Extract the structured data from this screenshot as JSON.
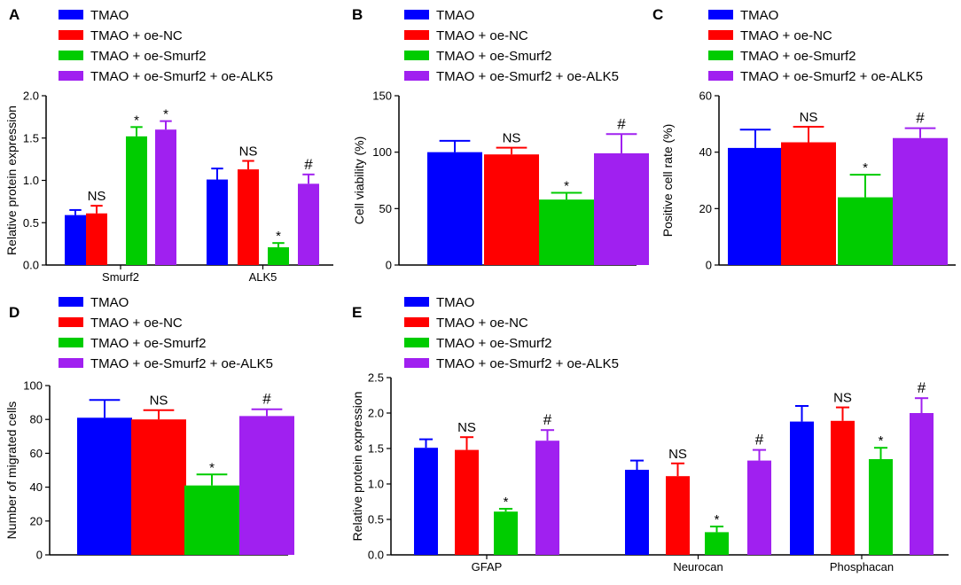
{
  "figure": {
    "colors": {
      "TMAO": "#0000ff",
      "TMAO + oe-NC": "#ff0000",
      "TMAO + oe-Smurf2": "#00cc00",
      "TMAO + oe-Smurf2 + oe-ALK5": "#a020f0"
    },
    "legend": [
      "TMAO",
      "TMAO + oe-NC",
      "TMAO + oe-Smurf2",
      "TMAO + oe-Smurf2 + oe-ALK5"
    ]
  },
  "chart_data": [
    {
      "id": "A",
      "type": "bar",
      "panel_label": "A",
      "ylabel": "Relative protein expression",
      "xlabel": "",
      "ylim": [
        0,
        2.0
      ],
      "yticks": [
        "0.0",
        "0.5",
        "1.0",
        "1.5",
        "2.0"
      ],
      "categories": [
        "Smurf2",
        "ALK5"
      ],
      "series": [
        {
          "name": "TMAO",
          "values": [
            0.59,
            1.01
          ],
          "errors": [
            0.06,
            0.13
          ],
          "annotations": [
            "",
            ""
          ]
        },
        {
          "name": "TMAO + oe-NC",
          "values": [
            0.61,
            1.13
          ],
          "errors": [
            0.09,
            0.1
          ],
          "annotations": [
            "NS",
            "NS"
          ]
        },
        {
          "name": "TMAO + oe-Smurf2",
          "values": [
            1.52,
            0.21
          ],
          "errors": [
            0.11,
            0.05
          ],
          "annotations": [
            "*",
            "*"
          ]
        },
        {
          "name": "TMAO + oe-Smurf2 + oe-ALK5",
          "values": [
            1.6,
            0.96
          ],
          "errors": [
            0.1,
            0.11
          ],
          "annotations": [
            "*",
            "#"
          ]
        }
      ]
    },
    {
      "id": "B",
      "type": "bar",
      "panel_label": "B",
      "ylabel": "Cell viability (%)",
      "xlabel": "",
      "ylim": [
        0,
        150
      ],
      "yticks": [
        "0",
        "50",
        "100",
        "150"
      ],
      "categories": [
        ""
      ],
      "series": [
        {
          "name": "TMAO",
          "values": [
            100
          ],
          "errors": [
            10
          ],
          "annotations": [
            ""
          ]
        },
        {
          "name": "TMAO + oe-NC",
          "values": [
            98
          ],
          "errors": [
            6
          ],
          "annotations": [
            "NS"
          ]
        },
        {
          "name": "TMAO + oe-Smurf2",
          "values": [
            58
          ],
          "errors": [
            6
          ],
          "annotations": [
            "*"
          ]
        },
        {
          "name": "TMAO + oe-Smurf2 + oe-ALK5",
          "values": [
            99
          ],
          "errors": [
            17
          ],
          "annotations": [
            "#"
          ]
        }
      ]
    },
    {
      "id": "C",
      "type": "bar",
      "panel_label": "C",
      "ylabel": "Positive cell rate (%)",
      "xlabel": "",
      "ylim": [
        0,
        60
      ],
      "yticks": [
        "0",
        "20",
        "40",
        "60"
      ],
      "categories": [
        ""
      ],
      "series": [
        {
          "name": "TMAO",
          "values": [
            41.5
          ],
          "errors": [
            6.5
          ],
          "annotations": [
            ""
          ]
        },
        {
          "name": "TMAO + oe-NC",
          "values": [
            43.5
          ],
          "errors": [
            5.5
          ],
          "annotations": [
            "NS"
          ]
        },
        {
          "name": "TMAO + oe-Smurf2",
          "values": [
            24
          ],
          "errors": [
            8
          ],
          "annotations": [
            "*"
          ]
        },
        {
          "name": "TMAO + oe-Smurf2 + oe-ALK5",
          "values": [
            45
          ],
          "errors": [
            3.5
          ],
          "annotations": [
            "#"
          ]
        }
      ]
    },
    {
      "id": "D",
      "type": "bar",
      "panel_label": "D",
      "ylabel": "Number of migrated cells",
      "xlabel": "",
      "ylim": [
        0,
        100
      ],
      "yticks": [
        "0",
        "20",
        "40",
        "60",
        "80",
        "100"
      ],
      "categories": [
        ""
      ],
      "series": [
        {
          "name": "TMAO",
          "values": [
            81
          ],
          "errors": [
            10.5
          ],
          "annotations": [
            ""
          ]
        },
        {
          "name": "TMAO + oe-NC",
          "values": [
            80
          ],
          "errors": [
            5.5
          ],
          "annotations": [
            "NS"
          ]
        },
        {
          "name": "TMAO + oe-Smurf2",
          "values": [
            41
          ],
          "errors": [
            6.5
          ],
          "annotations": [
            "*"
          ]
        },
        {
          "name": "TMAO + oe-Smurf2 + oe-ALK5",
          "values": [
            82
          ],
          "errors": [
            4
          ],
          "annotations": [
            "#"
          ]
        }
      ]
    },
    {
      "id": "E",
      "type": "bar",
      "panel_label": "E",
      "ylabel": "Relative protein expression",
      "xlabel": "",
      "ylim": [
        0,
        2.5
      ],
      "yticks": [
        "0.0",
        "0.5",
        "1.0",
        "1.5",
        "2.0",
        "2.5"
      ],
      "categories": [
        "GFAP",
        "Neurocan",
        "Phosphacan"
      ],
      "series": [
        {
          "name": "TMAO",
          "values": [
            1.51,
            1.2,
            1.88
          ],
          "errors": [
            0.12,
            0.13,
            0.22
          ],
          "annotations": [
            "",
            "",
            ""
          ]
        },
        {
          "name": "TMAO + oe-NC",
          "values": [
            1.48,
            1.11,
            1.89
          ],
          "errors": [
            0.18,
            0.18,
            0.19
          ],
          "annotations": [
            "NS",
            "NS",
            "NS"
          ]
        },
        {
          "name": "TMAO + oe-Smurf2",
          "values": [
            0.61,
            0.32,
            1.35
          ],
          "errors": [
            0.04,
            0.08,
            0.16
          ],
          "annotations": [
            "*",
            "*",
            "*"
          ]
        },
        {
          "name": "TMAO + oe-Smurf2 + oe-ALK5",
          "values": [
            1.61,
            1.33,
            2.0
          ],
          "errors": [
            0.15,
            0.15,
            0.21
          ],
          "annotations": [
            "#",
            "#",
            "#"
          ]
        }
      ]
    }
  ]
}
